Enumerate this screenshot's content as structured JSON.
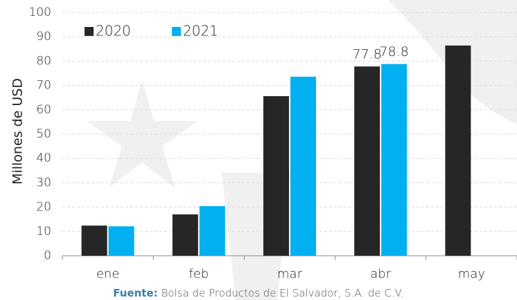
{
  "chart_data": {
    "type": "bar",
    "y_label": "Millones de USD",
    "categories": [
      "ene",
      "feb",
      "mar",
      "abr",
      "may"
    ],
    "series": [
      {
        "name": "2020",
        "color": "#262626",
        "values": [
          12.4,
          17.0,
          65.6,
          77.8,
          86.4
        ],
        "value_labels": [
          null,
          null,
          null,
          "77.8",
          null
        ]
      },
      {
        "name": "2021",
        "color": "#00b0f0",
        "values": [
          12.1,
          20.4,
          73.6,
          78.8,
          null
        ],
        "value_labels": [
          null,
          null,
          null,
          "78.8",
          null
        ]
      }
    ],
    "ylim": [
      0,
      100
    ],
    "yticks": [
      0,
      10,
      20,
      30,
      40,
      50,
      60,
      70,
      80,
      90,
      100
    ],
    "grid": true,
    "legend": "top-left",
    "source": {
      "label": "Fuente:",
      "text": "Bolsa de Productos de El Salvador, S.A. de C.V."
    }
  }
}
